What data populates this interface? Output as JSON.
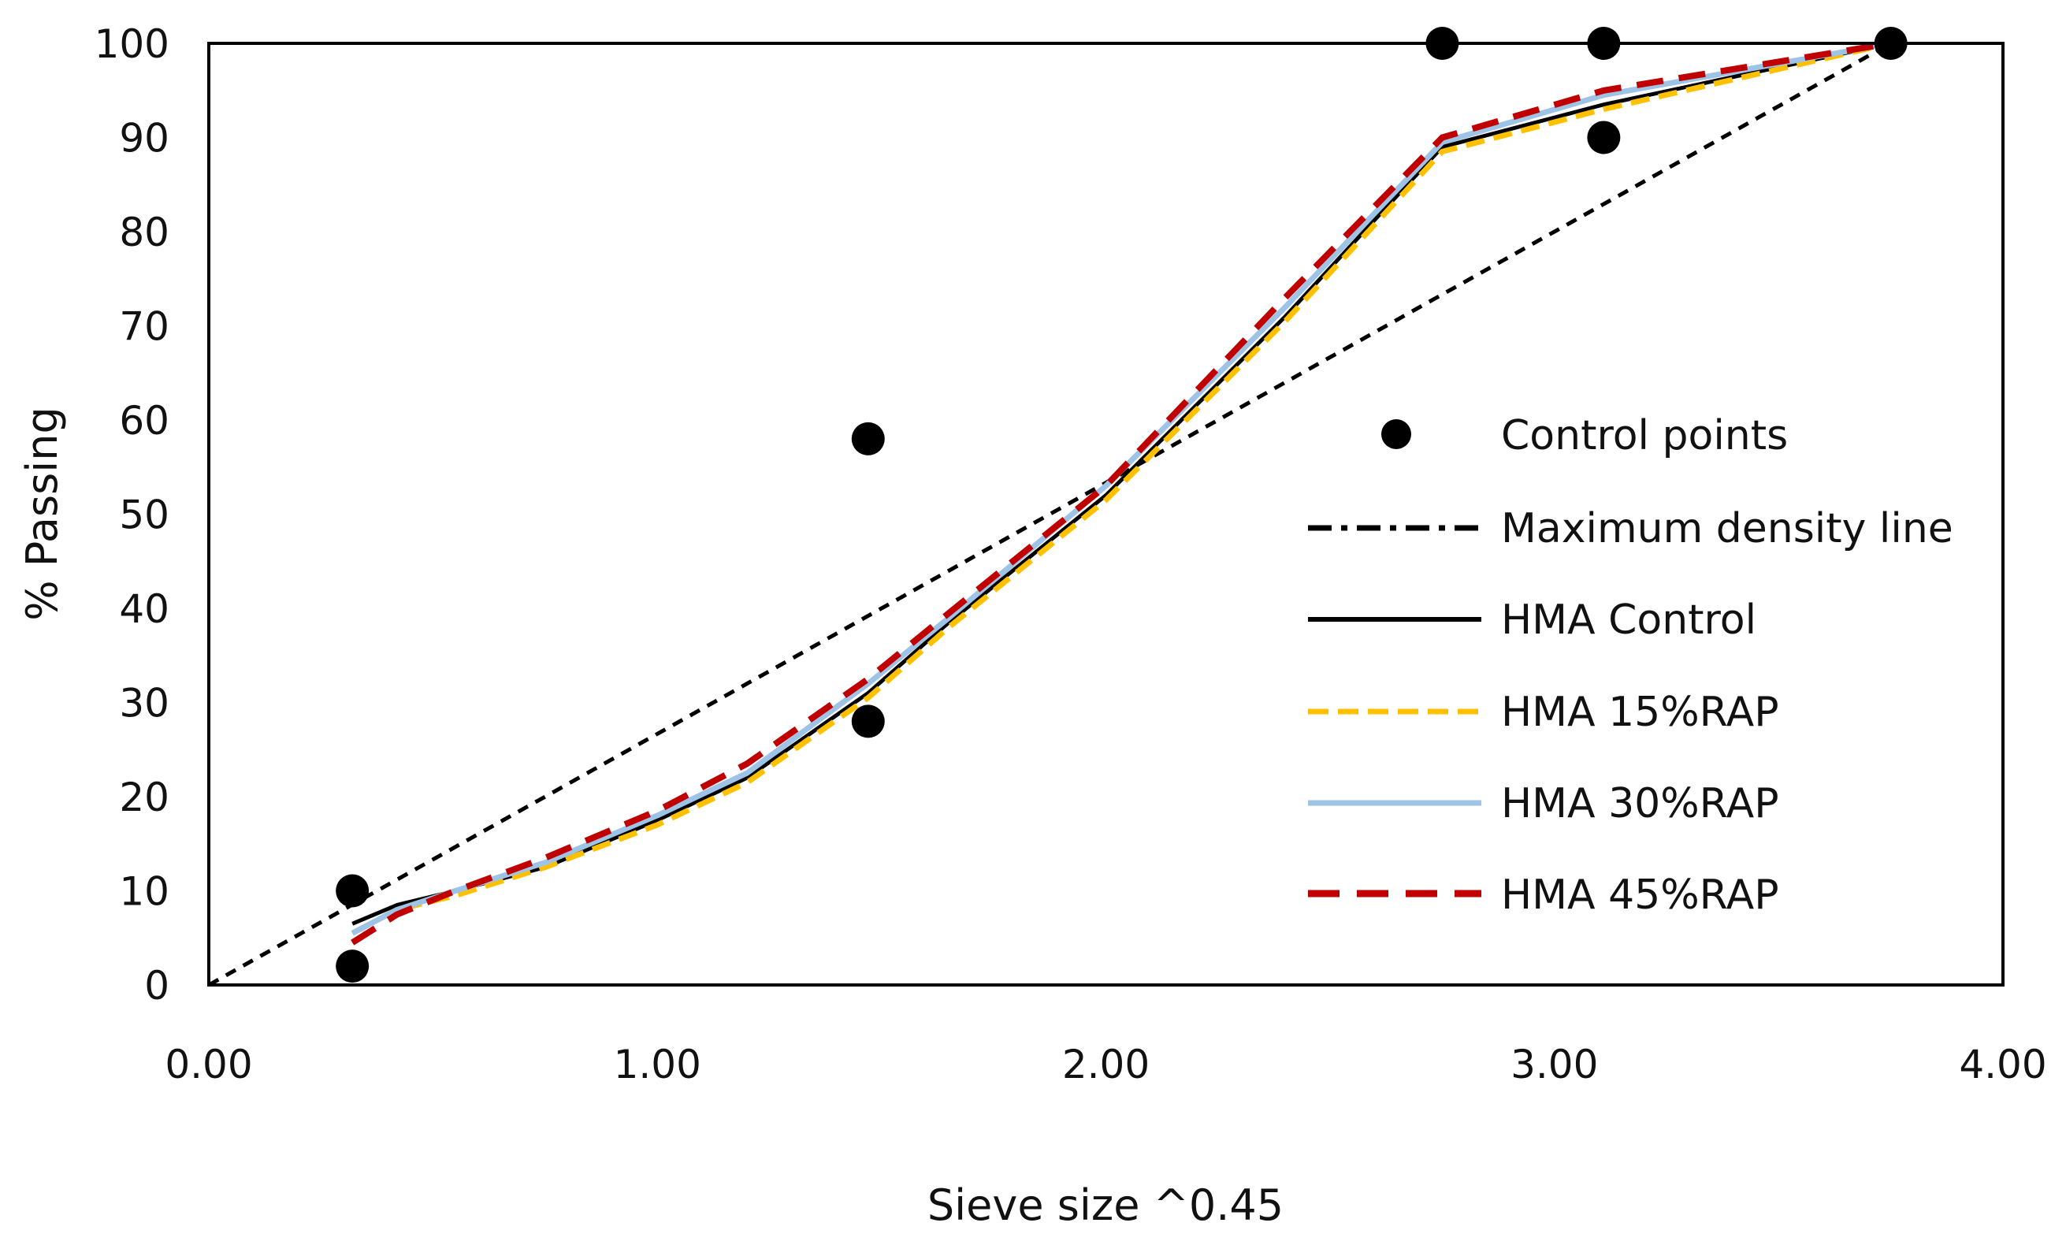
{
  "chart_data": {
    "type": "line",
    "title": "",
    "xlabel": "Sieve size ^0.45",
    "ylabel": "% Passing",
    "xlim": [
      0,
      4
    ],
    "ylim": [
      0,
      100
    ],
    "xticks": [
      "0.00",
      "1.00",
      "2.00",
      "3.00",
      "4.00"
    ],
    "yticks": [
      "0",
      "10",
      "20",
      "30",
      "40",
      "50",
      "60",
      "70",
      "80",
      "90",
      "100"
    ],
    "grid": false,
    "legend_position": "right-center",
    "control_points": {
      "name": "Control points",
      "points": [
        {
          "x": 0.32,
          "y": 2
        },
        {
          "x": 0.32,
          "y": 10
        },
        {
          "x": 1.47,
          "y": 28
        },
        {
          "x": 1.47,
          "y": 58
        },
        {
          "x": 2.75,
          "y": 100
        },
        {
          "x": 3.11,
          "y": 90
        },
        {
          "x": 3.11,
          "y": 100
        },
        {
          "x": 3.75,
          "y": 100
        }
      ]
    },
    "series": [
      {
        "name": "Maximum density line",
        "color": "#000000",
        "style": "dashed",
        "points": [
          {
            "x": 0,
            "y": 0
          },
          {
            "x": 3.75,
            "y": 100
          }
        ]
      },
      {
        "name": "HMA Control",
        "color": "#000000",
        "style": "solid",
        "points": [
          {
            "x": 0.32,
            "y": 6.5
          },
          {
            "x": 0.42,
            "y": 8.5
          },
          {
            "x": 0.55,
            "y": 10
          },
          {
            "x": 0.75,
            "y": 12.5
          },
          {
            "x": 1.0,
            "y": 17.5
          },
          {
            "x": 1.2,
            "y": 22
          },
          {
            "x": 1.47,
            "y": 31
          },
          {
            "x": 1.65,
            "y": 38.5
          },
          {
            "x": 2.0,
            "y": 52
          },
          {
            "x": 2.4,
            "y": 71
          },
          {
            "x": 2.75,
            "y": 89
          },
          {
            "x": 3.11,
            "y": 93.5
          },
          {
            "x": 3.75,
            "y": 100
          }
        ]
      },
      {
        "name": "HMA 15%RAP",
        "color": "#ffc000",
        "style": "dashed",
        "points": [
          {
            "x": 0.32,
            "y": 5.5
          },
          {
            "x": 0.42,
            "y": 8
          },
          {
            "x": 0.55,
            "y": 9.5
          },
          {
            "x": 0.75,
            "y": 12.5
          },
          {
            "x": 1.0,
            "y": 17
          },
          {
            "x": 1.2,
            "y": 21.5
          },
          {
            "x": 1.47,
            "y": 30.5
          },
          {
            "x": 1.65,
            "y": 38
          },
          {
            "x": 2.0,
            "y": 51.5
          },
          {
            "x": 2.4,
            "y": 70.5
          },
          {
            "x": 2.75,
            "y": 88.5
          },
          {
            "x": 3.11,
            "y": 93
          },
          {
            "x": 3.75,
            "y": 100
          }
        ]
      },
      {
        "name": "HMA 30%RAP",
        "color": "#9dc3e6",
        "style": "solid",
        "points": [
          {
            "x": 0.32,
            "y": 5.5
          },
          {
            "x": 0.42,
            "y": 8
          },
          {
            "x": 0.55,
            "y": 10
          },
          {
            "x": 0.75,
            "y": 13
          },
          {
            "x": 1.0,
            "y": 18
          },
          {
            "x": 1.2,
            "y": 22.5
          },
          {
            "x": 1.47,
            "y": 32
          },
          {
            "x": 1.65,
            "y": 39
          },
          {
            "x": 2.0,
            "y": 53
          },
          {
            "x": 2.4,
            "y": 72
          },
          {
            "x": 2.75,
            "y": 89.5
          },
          {
            "x": 3.11,
            "y": 94.5
          },
          {
            "x": 3.75,
            "y": 100
          }
        ]
      },
      {
        "name": "HMA 45%RAP",
        "color": "#c00000",
        "style": "dashed",
        "points": [
          {
            "x": 0.32,
            "y": 4.5
          },
          {
            "x": 0.42,
            "y": 7.5
          },
          {
            "x": 0.55,
            "y": 10
          },
          {
            "x": 0.75,
            "y": 13.5
          },
          {
            "x": 1.0,
            "y": 18.5
          },
          {
            "x": 1.2,
            "y": 23.5
          },
          {
            "x": 1.47,
            "y": 32.5
          },
          {
            "x": 1.65,
            "y": 39.5
          },
          {
            "x": 2.0,
            "y": 53
          },
          {
            "x": 2.4,
            "y": 73
          },
          {
            "x": 2.75,
            "y": 90
          },
          {
            "x": 3.11,
            "y": 95
          },
          {
            "x": 3.75,
            "y": 100
          }
        ]
      }
    ]
  }
}
